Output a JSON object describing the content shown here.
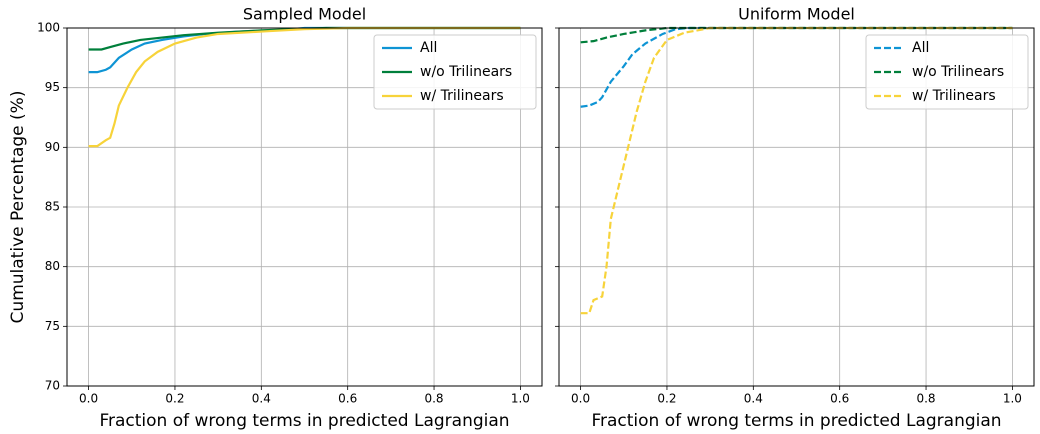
{
  "chart_data": [
    {
      "type": "line",
      "title": "Sampled Model",
      "xlabel": "Fraction of wrong terms in predicted Lagrangian",
      "ylabel": "Cumulative Percentage (%)",
      "xlim": [
        -0.05,
        1.05
      ],
      "ylim": [
        70,
        100
      ],
      "xticks": [
        {
          "value": 0,
          "label": "0.0"
        },
        0.2,
        0.4,
        0.6,
        0.8,
        {
          "value": 1,
          "label": "1.0"
        }
      ],
      "yticks": [
        70,
        75,
        80,
        85,
        90,
        95,
        100
      ],
      "show_ytick_labels": true,
      "grid": true,
      "legend": "upper right",
      "series": [
        {
          "name": "All",
          "color": "#0e94d4",
          "linestyle": "solid",
          "x": [
            0,
            0.02,
            0.04,
            0.05,
            0.07,
            0.1,
            0.13,
            0.17,
            0.22,
            0.27,
            0.35,
            0.45,
            0.5,
            1.0
          ],
          "values": [
            96.3,
            96.3,
            96.5,
            96.7,
            97.5,
            98.2,
            98.7,
            99.0,
            99.3,
            99.5,
            99.7,
            99.85,
            100,
            100
          ]
        },
        {
          "name": "w/o Trilinears",
          "color": "#007f3b",
          "linestyle": "solid",
          "x": [
            0,
            0.03,
            0.05,
            0.08,
            0.12,
            0.17,
            0.22,
            0.3,
            0.4,
            0.55,
            1.0
          ],
          "values": [
            98.2,
            98.2,
            98.4,
            98.7,
            99.0,
            99.2,
            99.4,
            99.6,
            99.8,
            100,
            100
          ]
        },
        {
          "name": "w/ Trilinears",
          "color": "#f7d33a",
          "linestyle": "solid",
          "x": [
            0,
            0.02,
            0.04,
            0.05,
            0.06,
            0.07,
            0.09,
            0.11,
            0.13,
            0.16,
            0.2,
            0.25,
            0.3,
            0.4,
            0.5,
            0.6,
            1.0
          ],
          "values": [
            90.1,
            90.1,
            90.6,
            90.8,
            92.0,
            93.5,
            95.0,
            96.3,
            97.2,
            98.0,
            98.7,
            99.2,
            99.5,
            99.7,
            99.9,
            100,
            100
          ]
        }
      ]
    },
    {
      "type": "line",
      "title": "Uniform Model",
      "xlabel": "Fraction of wrong terms in predicted Lagrangian",
      "xlim": [
        -0.05,
        1.05
      ],
      "ylim": [
        70,
        100
      ],
      "xticks": [
        {
          "value": 0,
          "label": "0.0"
        },
        0.2,
        0.4,
        0.6,
        0.8,
        {
          "value": 1,
          "label": "1.0"
        }
      ],
      "yticks": [
        70,
        75,
        80,
        85,
        90,
        95,
        100
      ],
      "show_ytick_labels": false,
      "grid": true,
      "legend": "upper right",
      "series": [
        {
          "name": "All",
          "color": "#0e94d4",
          "linestyle": "dashed",
          "x": [
            0,
            0.02,
            0.04,
            0.05,
            0.07,
            0.1,
            0.12,
            0.15,
            0.19,
            0.22,
            0.25,
            1.0
          ],
          "values": [
            93.4,
            93.5,
            93.8,
            94.2,
            95.5,
            96.8,
            97.8,
            98.7,
            99.5,
            99.9,
            100,
            100
          ]
        },
        {
          "name": "w/o Trilinears",
          "color": "#007f3b",
          "linestyle": "dashed",
          "x": [
            0,
            0.03,
            0.06,
            0.1,
            0.15,
            0.2,
            1.0
          ],
          "values": [
            98.8,
            98.9,
            99.2,
            99.5,
            99.8,
            100,
            100
          ]
        },
        {
          "name": "w/ Trilinears",
          "color": "#f7d33a",
          "linestyle": "dashed",
          "x": [
            0,
            0.02,
            0.03,
            0.05,
            0.06,
            0.07,
            0.09,
            0.11,
            0.13,
            0.15,
            0.17,
            0.2,
            0.24,
            0.3,
            1.0
          ],
          "values": [
            76.1,
            76.1,
            77.2,
            77.5,
            80,
            84,
            87,
            90,
            93,
            95.5,
            97.5,
            99,
            99.6,
            100,
            100
          ]
        }
      ]
    }
  ]
}
